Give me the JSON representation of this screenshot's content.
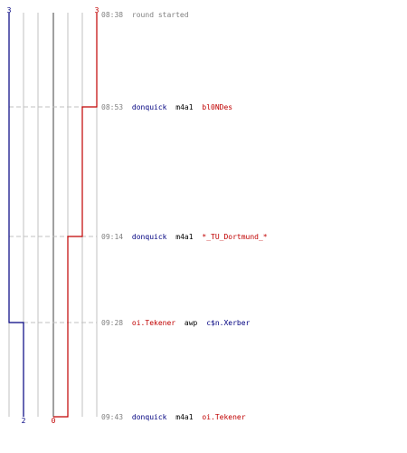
{
  "colors": {
    "blue": "#000080",
    "red": "#c00000",
    "time": "#808080",
    "grid": "#c0c0c0",
    "dash": "#c0c0c0",
    "center": "#808080"
  },
  "scores": {
    "left_start": "3",
    "right_start": "3",
    "left_end": "2",
    "right_end": "0"
  },
  "events": [
    {
      "time": "08:38",
      "killer": "",
      "weapon": "",
      "victim": "",
      "text": "round started",
      "killer_team": "",
      "victim_team": ""
    },
    {
      "time": "08:53",
      "killer": "donquick",
      "weapon": "m4a1",
      "victim": "bl0NDes",
      "text": "",
      "killer_team": "blue",
      "victim_team": "red"
    },
    {
      "time": "09:14",
      "killer": "donquick",
      "weapon": "m4a1",
      "victim": "*_TU_Dortmund_*",
      "text": "",
      "killer_team": "blue",
      "victim_team": "red"
    },
    {
      "time": "09:28",
      "killer": "oi.Tekener",
      "weapon": "awp",
      "victim": "c$n.Xerber",
      "text": "",
      "killer_team": "red",
      "victim_team": "blue"
    },
    {
      "time": "09:43",
      "killer": "donquick",
      "weapon": "m4a1",
      "victim": "oi.Tekener",
      "text": "",
      "killer_team": "blue",
      "victim_team": "red"
    }
  ]
}
